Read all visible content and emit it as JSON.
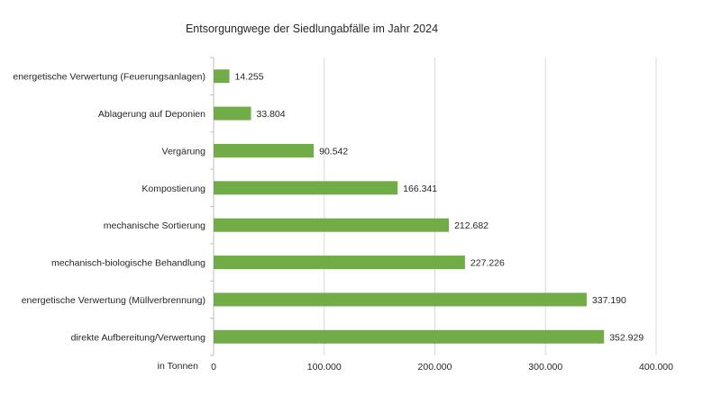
{
  "chart_data": {
    "type": "bar",
    "orientation": "horizontal",
    "title": "Entsorgungwege der Siedlungabfälle im Jahr 2024",
    "xlabel": "in Tonnen",
    "ylabel": "",
    "categories": [
      "energetische Verwertung (Feuerungsanlagen)",
      "Ablagerung auf Deponien",
      "Vergärung",
      "Kompostierung",
      "mechanische Sortierung",
      "mechanisch-biologische Behandlung",
      "energetische Verwertung (Müllverbrennung)",
      "direkte Aufbereitung/Verwertung"
    ],
    "values": [
      14255,
      33804,
      90542,
      166341,
      212682,
      227226,
      337190,
      352929
    ],
    "data_labels": [
      "14.255",
      "33.804",
      "90.542",
      "166.341",
      "212.682",
      "227.226",
      "337.190",
      "352.929"
    ],
    "xlim": [
      0,
      400000
    ],
    "x_ticks": [
      0,
      100000,
      200000,
      300000,
      400000
    ],
    "x_tick_labels": [
      "0",
      "100.000",
      "200.000",
      "300.000",
      "400.000"
    ],
    "grid": true,
    "legend": "none",
    "bar_color": "#70ad47"
  }
}
